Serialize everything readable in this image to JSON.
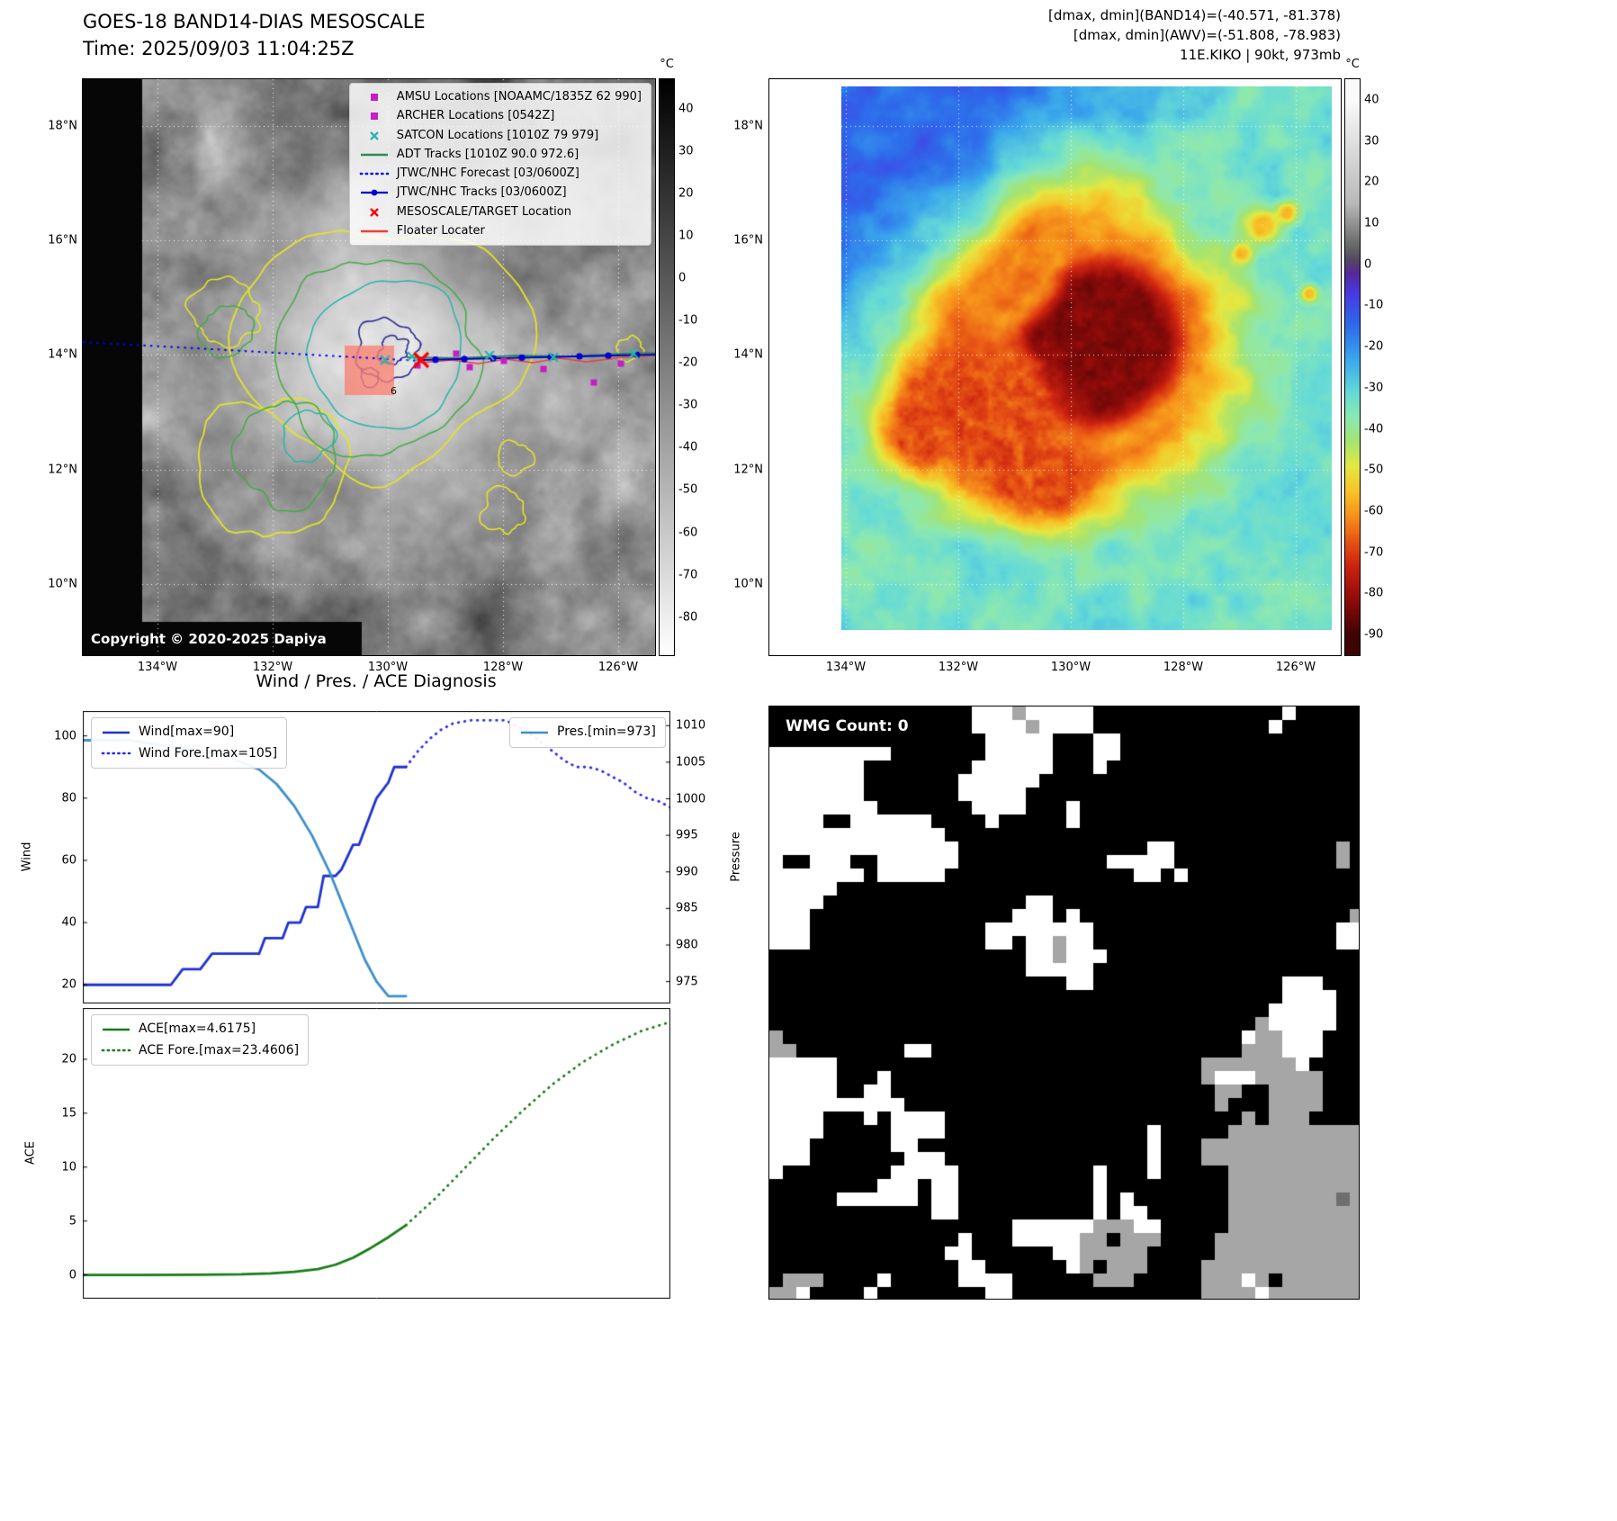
{
  "panel_tl": {
    "title": "GOES-18 BAND14-DIAS MESOSCALE",
    "subtitle": "Time: 2025/09/03 11:04:25Z",
    "copyright": "Copyright © 2020-2025 Dapiya",
    "contour_label": "6",
    "lat_ticks": [
      "18°N",
      "16°N",
      "14°N",
      "12°N",
      "10°N"
    ],
    "lon_ticks": [
      "134°W",
      "132°W",
      "130°W",
      "128°W",
      "126°W"
    ],
    "colorbar": {
      "unit": "°C",
      "ticks": [
        40,
        30,
        20,
        10,
        0,
        -10,
        -20,
        -30,
        -40,
        -50,
        -60,
        -70,
        -80
      ]
    },
    "legend": [
      {
        "label": "AMSU Locations [NOAAMC/1835Z 62 990]",
        "marker": "square",
        "color": "#c41ec4"
      },
      {
        "label": "ARCHER Locations [0542Z]",
        "marker": "square",
        "color": "#c41ec4"
      },
      {
        "label": "SATCON Locations [1010Z 79 979]",
        "marker": "x",
        "color": "#28b5a8"
      },
      {
        "label": "ADT Tracks [1010Z 90.0 972.6]",
        "marker": "line",
        "color": "#2e8b57"
      },
      {
        "label": "JTWC/NHC Forecast [03/0600Z]",
        "marker": "dotted-line",
        "color": "#0000ff"
      },
      {
        "label": "JTWC/NHC Tracks [03/0600Z]",
        "marker": "line-marker",
        "color": "#0000cd"
      },
      {
        "label": "MESOSCALE/TARGET Location",
        "marker": "x",
        "color": "#ff0000"
      },
      {
        "label": "Floater Locater",
        "marker": "line",
        "color": "#e8413c"
      }
    ],
    "overlay_colors": {
      "target_box": "#fa8072",
      "grid": "#ffffff",
      "contours": [
        "#e3e32a",
        "#44aa44",
        "#28b5a8",
        "#2c2c96"
      ]
    }
  },
  "panel_tr": {
    "header_lines": [
      "[dmax, dmin](BAND14)=(-40.571, -81.378)",
      "[dmax, dmin](AWV)=(-51.808, -78.983)",
      "11E.KIKO | 90kt, 973mb"
    ],
    "lat_ticks": [
      "18°N",
      "16°N",
      "14°N",
      "12°N",
      "10°N"
    ],
    "lon_ticks": [
      "134°W",
      "132°W",
      "130°W",
      "128°W",
      "126°W"
    ],
    "colorbar": {
      "unit": "°C",
      "ticks": [
        40,
        30,
        20,
        10,
        0,
        -10,
        -20,
        -30,
        -40,
        -50,
        -60,
        -70,
        -80,
        -90
      ]
    }
  },
  "panel_br": {
    "wmg_label": "WMG Count: 0",
    "palette": {
      "black": "#000000",
      "white": "#ffffff",
      "gray": "#a6a6a6",
      "dark_gray": "#6e6e6e"
    }
  },
  "chart_data": [
    {
      "type": "line",
      "title": "Wind / Pres. / ACE Diagnosis",
      "xlim": [
        0,
        100
      ],
      "left_axis": {
        "label": "Wind",
        "lim": [
          14,
          108
        ],
        "ticks": [
          20,
          40,
          60,
          80,
          100
        ]
      },
      "right_axis": {
        "label": "Pressure",
        "lim": [
          972,
          1012
        ],
        "ticks": [
          975,
          980,
          985,
          990,
          995,
          1000,
          1005,
          1010
        ]
      },
      "series": [
        {
          "name": "Wind[max=90]",
          "axis": "left",
          "style": "solid",
          "color": "#1f32d0",
          "x": [
            0,
            15,
            17,
            20,
            22,
            25,
            27,
            30,
            31,
            34,
            35,
            37,
            38,
            40,
            41,
            43,
            44,
            46,
            47,
            49,
            50,
            52,
            53,
            55
          ],
          "y": [
            20,
            20,
            25,
            25,
            30,
            30,
            30,
            30,
            35,
            35,
            40,
            40,
            45,
            45,
            55,
            55,
            57,
            65,
            65,
            75,
            80,
            85,
            90,
            90
          ]
        },
        {
          "name": "Wind Fore.[max=105]",
          "axis": "left",
          "style": "dotted",
          "color": "#2a2af0",
          "x": [
            55,
            57,
            59,
            61,
            63,
            66,
            69,
            72,
            74,
            76,
            78,
            80,
            82,
            84,
            86,
            88,
            90,
            92,
            94,
            96,
            98,
            100
          ],
          "y": [
            90,
            95,
            99,
            102,
            104,
            105,
            105,
            105,
            103,
            101,
            98,
            95,
            92,
            90,
            90,
            89,
            87,
            85,
            82,
            80,
            79,
            77
          ]
        },
        {
          "name": "Pres.[min=973]",
          "axis": "right",
          "style": "solid",
          "color": "#3f8fc9",
          "x": [
            0,
            8,
            16,
            24,
            30,
            33,
            36,
            39,
            42,
            45,
            48,
            50,
            52,
            55
          ],
          "y": [
            1008,
            1008,
            1007,
            1006,
            1004,
            1002,
            999,
            995,
            990,
            984,
            978,
            975,
            973,
            973
          ]
        }
      ]
    },
    {
      "type": "line",
      "title": "",
      "xlim": [
        0,
        100
      ],
      "left_axis": {
        "label": "ACE",
        "lim": [
          -2.2,
          24.75
        ],
        "ticks": [
          0,
          5,
          10,
          15,
          20
        ]
      },
      "series": [
        {
          "name": "ACE[max=4.6175]",
          "axis": "left",
          "style": "solid",
          "color": "#177d17",
          "x": [
            0,
            10,
            20,
            27,
            32,
            36,
            40,
            43,
            46,
            49,
            52,
            55
          ],
          "y": [
            0,
            0,
            0.02,
            0.06,
            0.15,
            0.3,
            0.55,
            0.95,
            1.6,
            2.5,
            3.5,
            4.6175
          ]
        },
        {
          "name": "ACE Fore.[max=23.4606]",
          "axis": "left",
          "style": "dotted",
          "color": "#177d17",
          "x": [
            55,
            60,
            65,
            70,
            75,
            80,
            85,
            90,
            95,
            100
          ],
          "y": [
            4.6175,
            7.1,
            9.9,
            12.7,
            15.3,
            17.7,
            19.7,
            21.3,
            22.6,
            23.4606
          ]
        }
      ]
    }
  ]
}
